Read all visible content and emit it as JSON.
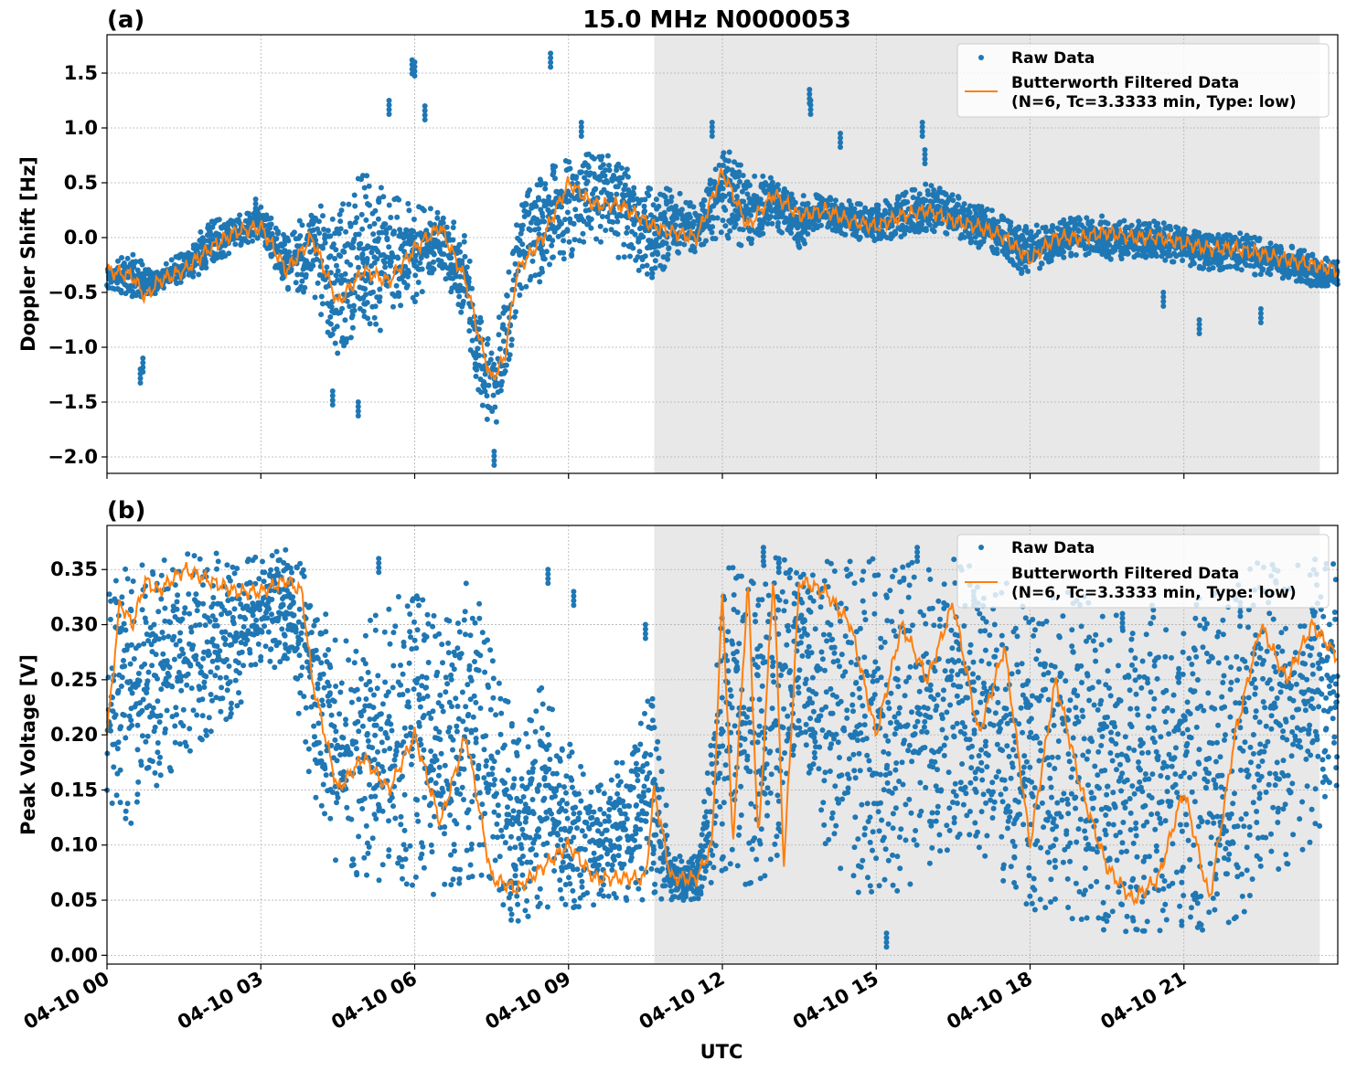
{
  "figure": {
    "title": "15.0 MHz N0000053",
    "xlabel": "UTC",
    "x_ticks": [
      "04-10 00",
      "04-10 03",
      "04-10 06",
      "04-10 09",
      "04-10 12",
      "04-10 15",
      "04-10 18",
      "04-10 21"
    ]
  },
  "colors": {
    "raw": "#1f77b4",
    "filtered": "#ff7f0e",
    "shade": "#e8e8e8",
    "grid": "#b0b0b0"
  },
  "legend": {
    "raw_label": "Raw Data",
    "filtered_label_line1": "Butterworth Filtered Data",
    "filtered_label_line2": "(N=6, Tc=3.3333 min, Type: low)"
  },
  "chart_data": [
    {
      "type": "scatter",
      "panel_label": "(a)",
      "ylabel": "Doppler Shift [Hz]",
      "xlim": [
        0,
        24
      ],
      "ylim": [
        -2.15,
        1.85
      ],
      "y_ticks": [
        -2.0,
        -1.5,
        -1.0,
        -0.5,
        0.0,
        0.5,
        1.0,
        1.5
      ],
      "y_tick_labels": [
        "−2.0",
        "−1.5",
        "−1.0",
        "−0.5",
        "0.0",
        "0.5",
        "1.0",
        "1.5"
      ],
      "shaded_x_range": [
        10.67,
        23.65
      ],
      "x_unit": "hours UTC on 04-10",
      "series": [
        {
          "name": "Butterworth Filtered Data",
          "kind": "line",
          "x": [
            0,
            0.5,
            0.75,
            1,
            1.5,
            2,
            2.5,
            3,
            3.5,
            4,
            4.5,
            5,
            5.5,
            6,
            6.5,
            7,
            7.25,
            7.5,
            7.75,
            8,
            8.5,
            9,
            9.5,
            10,
            10.67,
            11,
            11.5,
            12,
            12.5,
            13,
            13.5,
            14,
            14.5,
            15,
            15.5,
            16,
            16.5,
            17,
            17.5,
            18,
            18.5,
            19,
            19.5,
            20,
            20.5,
            21,
            21.5,
            22,
            22.5,
            23,
            23.5,
            24
          ],
          "y": [
            -0.3,
            -0.35,
            -0.55,
            -0.4,
            -0.3,
            -0.1,
            0.05,
            0.1,
            -0.3,
            0.0,
            -0.6,
            -0.3,
            -0.4,
            -0.1,
            0.1,
            -0.4,
            -0.9,
            -1.3,
            -1.1,
            -0.3,
            0.0,
            0.5,
            0.3,
            0.3,
            0.1,
            0.05,
            0.0,
            0.6,
            0.1,
            0.4,
            0.2,
            0.25,
            0.15,
            0.1,
            0.2,
            0.25,
            0.15,
            0.1,
            0.0,
            -0.2,
            0.0,
            0.0,
            0.05,
            0.0,
            0.0,
            -0.05,
            -0.1,
            -0.1,
            -0.15,
            -0.2,
            -0.25,
            -0.3
          ]
        },
        {
          "name": "Raw Data",
          "kind": "scatter",
          "band": {
            "x": [
              0,
              0.5,
              1,
              1.5,
              2,
              2.5,
              3,
              3.5,
              4,
              4.5,
              5,
              5.5,
              6,
              6.5,
              7,
              7.25,
              7.5,
              7.75,
              8,
              8.5,
              9,
              9.5,
              10,
              10.67,
              11,
              11.5,
              12,
              12.5,
              13,
              13.5,
              14,
              14.5,
              15,
              15.5,
              16,
              16.5,
              17,
              17.5,
              18,
              18.5,
              19,
              19.5,
              20,
              20.5,
              21,
              21.5,
              22,
              22.5,
              23,
              23.5,
              24
            ],
            "low": [
              -0.45,
              -0.6,
              -0.5,
              -0.4,
              -0.3,
              -0.1,
              0.0,
              -0.5,
              -0.5,
              -1.1,
              -0.8,
              -0.9,
              -0.6,
              -0.3,
              -0.8,
              -1.5,
              -1.8,
              -1.5,
              -0.6,
              -0.4,
              -0.2,
              0.0,
              -0.2,
              -0.4,
              -0.2,
              -0.15,
              0.0,
              -0.1,
              0.1,
              -0.1,
              0.1,
              0.0,
              -0.05,
              0.0,
              0.05,
              0.0,
              -0.1,
              -0.2,
              -0.4,
              -0.2,
              -0.15,
              -0.2,
              -0.2,
              -0.2,
              -0.25,
              -0.3,
              -0.3,
              -0.35,
              -0.4,
              -0.45,
              -0.45
            ],
            "high": [
              -0.2,
              -0.15,
              -0.3,
              -0.1,
              0.15,
              0.2,
              0.3,
              0.0,
              0.3,
              0.3,
              0.6,
              0.4,
              0.3,
              0.3,
              0.0,
              -0.6,
              -0.9,
              -0.6,
              0.3,
              0.6,
              0.8,
              0.8,
              0.8,
              0.4,
              0.5,
              0.3,
              0.9,
              0.6,
              0.6,
              0.4,
              0.4,
              0.35,
              0.3,
              0.4,
              0.5,
              0.4,
              0.3,
              0.2,
              0.1,
              0.15,
              0.2,
              0.2,
              0.15,
              0.15,
              0.1,
              0.05,
              0.05,
              0.0,
              -0.05,
              -0.15,
              -0.2
            ]
          },
          "outliers_x": [
            0.65,
            0.7,
            2.9,
            4.4,
            4.9,
            5.5,
            5.95,
            6.0,
            6.2,
            7.55,
            8.65,
            9.25,
            11.8,
            13.7,
            13.72,
            14.3,
            15.9,
            15.95,
            20.6,
            21.3,
            22.5
          ],
          "outliers_y": [
            -1.2,
            -1.1,
            0.35,
            -1.4,
            -1.5,
            1.25,
            1.62,
            1.6,
            1.2,
            -1.95,
            1.68,
            1.05,
            1.05,
            1.35,
            1.25,
            0.95,
            1.05,
            0.8,
            -0.5,
            -0.75,
            -0.65
          ]
        }
      ]
    },
    {
      "type": "scatter",
      "panel_label": "(b)",
      "ylabel": "Peak Voltage [V]",
      "xlim": [
        0,
        24
      ],
      "ylim": [
        -0.008,
        0.39
      ],
      "y_ticks": [
        0.0,
        0.05,
        0.1,
        0.15,
        0.2,
        0.25,
        0.3,
        0.35
      ],
      "y_tick_labels": [
        "0.00",
        "0.05",
        "0.10",
        "0.15",
        "0.20",
        "0.25",
        "0.30",
        "0.35"
      ],
      "shaded_x_range": [
        10.67,
        23.65
      ],
      "x_unit": "hours UTC on 04-10",
      "series": [
        {
          "name": "Butterworth Filtered Data",
          "kind": "line",
          "x": [
            0,
            0.25,
            0.5,
            0.75,
            1,
            1.5,
            2,
            2.5,
            3,
            3.5,
            3.8,
            4,
            4.5,
            5,
            5.5,
            6,
            6.5,
            7,
            7.5,
            8,
            8.5,
            9,
            9.5,
            10,
            10.5,
            10.67,
            11,
            11.5,
            11.8,
            12,
            12.2,
            12.5,
            12.7,
            13,
            13.2,
            13.5,
            14,
            14.5,
            15,
            15.5,
            16,
            16.5,
            17,
            17.5,
            18,
            18.5,
            19,
            19.5,
            20,
            20.5,
            21,
            21.5,
            22,
            22.5,
            23,
            23.5,
            24
          ],
          "y": [
            0.2,
            0.32,
            0.3,
            0.34,
            0.33,
            0.35,
            0.34,
            0.33,
            0.33,
            0.34,
            0.33,
            0.25,
            0.15,
            0.18,
            0.15,
            0.2,
            0.12,
            0.2,
            0.07,
            0.06,
            0.08,
            0.1,
            0.07,
            0.07,
            0.07,
            0.15,
            0.07,
            0.07,
            0.1,
            0.33,
            0.1,
            0.34,
            0.1,
            0.35,
            0.08,
            0.34,
            0.33,
            0.3,
            0.2,
            0.3,
            0.25,
            0.32,
            0.2,
            0.28,
            0.1,
            0.25,
            0.15,
            0.08,
            0.05,
            0.07,
            0.15,
            0.05,
            0.2,
            0.3,
            0.25,
            0.3,
            0.27
          ]
        },
        {
          "name": "Raw Data",
          "kind": "scatter",
          "band": {
            "x": [
              0,
              0.5,
              1,
              1.5,
              2,
              2.5,
              3,
              3.5,
              4,
              4.5,
              5,
              5.5,
              6,
              6.5,
              7,
              7.5,
              8,
              8.5,
              9,
              9.5,
              10,
              10.67,
              11,
              11.5,
              11.8,
              12,
              12.5,
              13,
              13.5,
              14,
              14.5,
              15,
              15.5,
              16,
              16.5,
              17,
              17.5,
              18,
              18.5,
              19,
              19.5,
              20,
              20.5,
              21,
              21.5,
              22,
              22.5,
              23,
              23.5,
              24
            ],
            "low": [
              0.1,
              0.12,
              0.15,
              0.18,
              0.2,
              0.22,
              0.25,
              0.27,
              0.15,
              0.08,
              0.07,
              0.05,
              0.06,
              0.05,
              0.07,
              0.03,
              0.03,
              0.04,
              0.04,
              0.04,
              0.05,
              0.05,
              0.05,
              0.05,
              0.06,
              0.06,
              0.05,
              0.06,
              0.2,
              0.1,
              0.05,
              0.05,
              0.06,
              0.07,
              0.1,
              0.08,
              0.06,
              0.04,
              0.03,
              0.03,
              0.02,
              0.02,
              0.02,
              0.02,
              0.02,
              0.03,
              0.05,
              0.08,
              0.1,
              0.15
            ],
            "high": [
              0.36,
              0.36,
              0.36,
              0.365,
              0.365,
              0.365,
              0.365,
              0.37,
              0.35,
              0.28,
              0.3,
              0.32,
              0.35,
              0.3,
              0.35,
              0.3,
              0.2,
              0.25,
              0.2,
              0.15,
              0.18,
              0.25,
              0.09,
              0.09,
              0.2,
              0.36,
              0.36,
              0.37,
              0.36,
              0.36,
              0.36,
              0.36,
              0.36,
              0.36,
              0.36,
              0.35,
              0.35,
              0.34,
              0.34,
              0.34,
              0.32,
              0.3,
              0.33,
              0.33,
              0.33,
              0.34,
              0.36,
              0.36,
              0.36,
              0.36
            ]
          },
          "outliers_x": [
            5.3,
            8.6,
            9.1,
            10.5,
            12.8,
            13.1,
            15.2,
            15.8,
            16.9,
            19.8,
            20.9,
            22.1
          ],
          "outliers_y": [
            0.36,
            0.35,
            0.33,
            0.3,
            0.37,
            0.36,
            0.02,
            0.37,
            0.33,
            0.31,
            0.26,
            0.32
          ]
        }
      ]
    }
  ]
}
